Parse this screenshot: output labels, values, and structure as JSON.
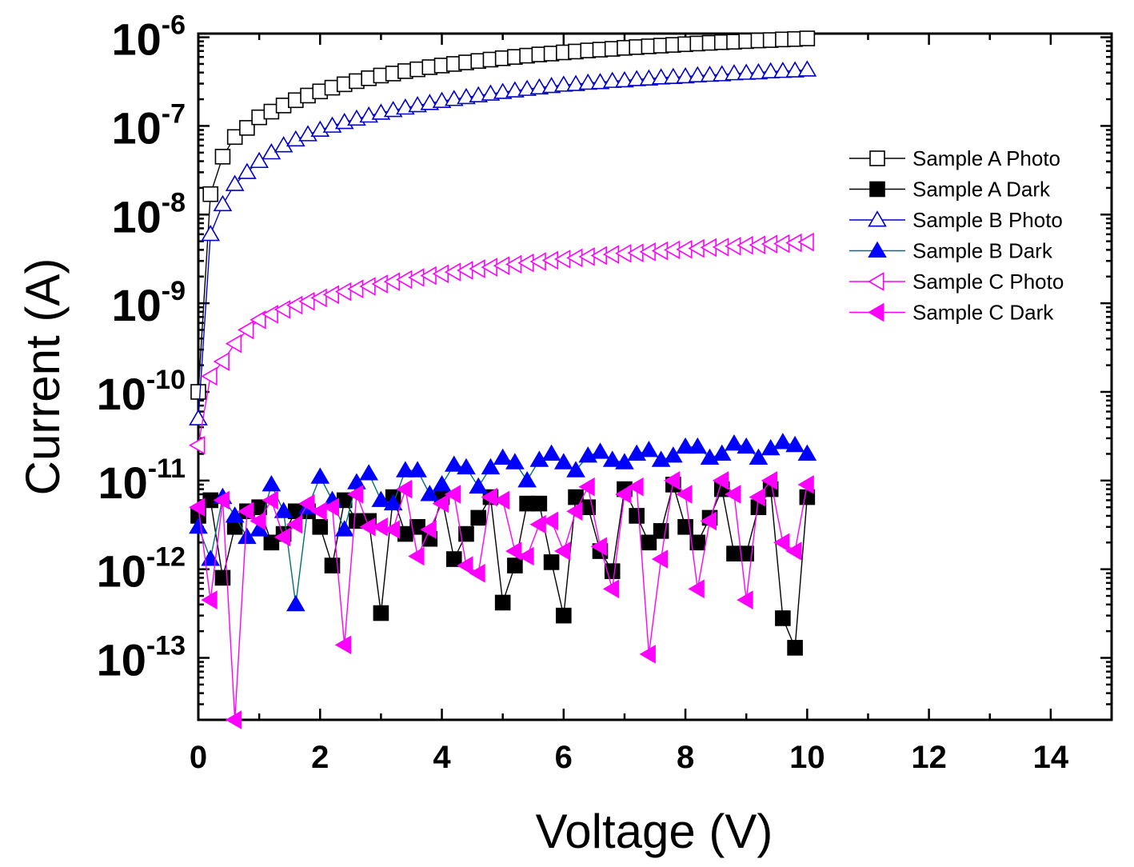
{
  "chart_data": {
    "type": "scatter",
    "title": "",
    "xlabel": "Voltage (V)",
    "ylabel": "Current (A)",
    "xlim": [
      0,
      15
    ],
    "ylim": [
      2e-14,
      1.1e-06
    ],
    "yscale": "log",
    "grid": false,
    "legend_position": "top-right",
    "x_ticks": [
      {
        "value": 0,
        "label": "0"
      },
      {
        "value": 2,
        "label": "2"
      },
      {
        "value": 4,
        "label": "4"
      },
      {
        "value": 6,
        "label": "6"
      },
      {
        "value": 8,
        "label": "8"
      },
      {
        "value": 10,
        "label": "10"
      },
      {
        "value": 12,
        "label": "12"
      },
      {
        "value": 14,
        "label": "14"
      }
    ],
    "y_ticks": [
      {
        "exp": -13,
        "base": "10",
        "exponent": "-13"
      },
      {
        "exp": -12,
        "base": "10",
        "exponent": "-12"
      },
      {
        "exp": -11,
        "base": "10",
        "exponent": "-11"
      },
      {
        "exp": -10,
        "base": "10",
        "exponent": "-10"
      },
      {
        "exp": -9,
        "base": "10",
        "exponent": "-9"
      },
      {
        "exp": -8,
        "base": "10",
        "exponent": "-8"
      },
      {
        "exp": -7,
        "base": "10",
        "exponent": "-7"
      },
      {
        "exp": -6,
        "base": "10",
        "exponent": "-6"
      }
    ],
    "series": [
      {
        "name": "Sample A Photo",
        "color": "#000000",
        "marker": "square",
        "filled": false,
        "x": [
          0,
          0.2,
          0.4,
          0.6,
          0.8,
          1.0,
          1.2,
          1.4,
          1.6,
          1.8,
          2.0,
          2.2,
          2.4,
          2.6,
          2.8,
          3.0,
          3.2,
          3.4,
          3.6,
          3.8,
          4.0,
          4.2,
          4.4,
          4.6,
          4.8,
          5.0,
          5.2,
          5.4,
          5.6,
          5.8,
          6.0,
          6.2,
          6.4,
          6.6,
          6.8,
          7.0,
          7.2,
          7.4,
          7.6,
          7.8,
          8.0,
          8.2,
          8.4,
          8.6,
          8.8,
          9.0,
          9.2,
          9.4,
          9.6,
          9.8,
          10.0
        ],
        "y": [
          1e-10,
          1.7e-08,
          4.5e-08,
          7.5e-08,
          9.5e-08,
          1.25e-07,
          1.45e-07,
          1.7e-07,
          1.95e-07,
          2.2e-07,
          2.45e-07,
          2.7e-07,
          2.95e-07,
          3.2e-07,
          3.45e-07,
          3.7e-07,
          3.9e-07,
          4.15e-07,
          4.35e-07,
          4.6e-07,
          4.8e-07,
          5e-07,
          5.2e-07,
          5.4e-07,
          5.6e-07,
          5.8e-07,
          6e-07,
          6.2e-07,
          6.4e-07,
          6.55e-07,
          6.75e-07,
          6.9e-07,
          7.1e-07,
          7.25e-07,
          7.4e-07,
          7.6e-07,
          7.75e-07,
          7.9e-07,
          8.05e-07,
          8.2e-07,
          8.35e-07,
          8.5e-07,
          8.65e-07,
          8.8e-07,
          8.9e-07,
          9.05e-07,
          9.2e-07,
          9.3e-07,
          9.45e-07,
          9.55e-07,
          9.7e-07
        ]
      },
      {
        "name": "Sample A Dark",
        "color": "#000000",
        "marker": "square",
        "filled": true,
        "x": [
          0,
          0.2,
          0.4,
          0.6,
          0.8,
          1.0,
          1.2,
          1.4,
          1.6,
          1.8,
          2.0,
          2.2,
          2.4,
          2.6,
          2.8,
          3.0,
          3.2,
          3.4,
          3.6,
          3.8,
          4.0,
          4.2,
          4.4,
          4.6,
          4.8,
          5.0,
          5.2,
          5.4,
          5.6,
          5.8,
          6.0,
          6.2,
          6.4,
          6.6,
          6.8,
          7.0,
          7.2,
          7.4,
          7.6,
          7.8,
          8.0,
          8.2,
          8.4,
          8.6,
          8.8,
          9.0,
          9.2,
          9.4,
          9.6,
          9.8,
          10.0
        ],
        "y": [
          4e-12,
          6e-12,
          8e-13,
          3e-12,
          4.5e-12,
          5e-12,
          2e-12,
          2.5e-12,
          4.5e-12,
          4.5e-12,
          3e-12,
          1.1e-12,
          6e-12,
          3.5e-12,
          3.5e-12,
          3.2e-13,
          6.5e-12,
          2.5e-12,
          3e-12,
          2.2e-12,
          6.5e-12,
          1.3e-12,
          2.5e-12,
          3.8e-12,
          6.5e-12,
          4.2e-13,
          1.1e-12,
          5.5e-12,
          5.5e-12,
          1.2e-12,
          3e-13,
          6.5e-12,
          5e-12,
          1.6e-12,
          9.5e-13,
          8e-12,
          4e-12,
          2e-12,
          2.7e-12,
          9e-12,
          3e-12,
          2e-12,
          3.8e-12,
          8e-12,
          1.5e-12,
          1.5e-12,
          5e-12,
          8e-12,
          2.8e-13,
          1.3e-13,
          6.5e-12
        ]
      },
      {
        "name": "Sample B Photo",
        "color": "#0000cc",
        "marker": "triangle-up",
        "filled": false,
        "x": [
          0,
          0.2,
          0.4,
          0.6,
          0.8,
          1.0,
          1.2,
          1.4,
          1.6,
          1.8,
          2.0,
          2.2,
          2.4,
          2.6,
          2.8,
          3.0,
          3.2,
          3.4,
          3.6,
          3.8,
          4.0,
          4.2,
          4.4,
          4.6,
          4.8,
          5.0,
          5.2,
          5.4,
          5.6,
          5.8,
          6.0,
          6.2,
          6.4,
          6.6,
          6.8,
          7.0,
          7.2,
          7.4,
          7.6,
          7.8,
          8.0,
          8.2,
          8.4,
          8.6,
          8.8,
          9.0,
          9.2,
          9.4,
          9.6,
          9.8,
          10.0
        ],
        "y": [
          5e-11,
          6e-09,
          1.3e-08,
          2.2e-08,
          3e-08,
          4e-08,
          5e-08,
          6e-08,
          7e-08,
          8e-08,
          9e-08,
          1e-07,
          1.1e-07,
          1.2e-07,
          1.3e-07,
          1.4e-07,
          1.5e-07,
          1.6e-07,
          1.7e-07,
          1.8e-07,
          1.9e-07,
          2e-07,
          2.1e-07,
          2.2e-07,
          2.3e-07,
          2.4e-07,
          2.5e-07,
          2.6e-07,
          2.7e-07,
          2.8e-07,
          2.9e-07,
          2.95e-07,
          3.05e-07,
          3.1e-07,
          3.2e-07,
          3.25e-07,
          3.35e-07,
          3.4e-07,
          3.5e-07,
          3.55e-07,
          3.6e-07,
          3.7e-07,
          3.75e-07,
          3.8e-07,
          3.9e-07,
          3.95e-07,
          4e-07,
          4.1e-07,
          4.15e-07,
          4.2e-07,
          4.3e-07
        ]
      },
      {
        "name": "Sample B Dark",
        "color": "#0000ff",
        "line_color": "#007070",
        "marker": "triangle-up",
        "filled": true,
        "x": [
          0,
          0.2,
          0.4,
          0.6,
          0.8,
          1.0,
          1.2,
          1.4,
          1.6,
          1.8,
          2.0,
          2.2,
          2.4,
          2.6,
          2.8,
          3.0,
          3.2,
          3.4,
          3.6,
          3.8,
          4.0,
          4.2,
          4.4,
          4.6,
          4.8,
          5.0,
          5.2,
          5.4,
          5.6,
          5.8,
          6.0,
          6.2,
          6.4,
          6.6,
          6.8,
          7.0,
          7.2,
          7.4,
          7.6,
          7.8,
          8.0,
          8.2,
          8.4,
          8.6,
          8.8,
          9.0,
          9.2,
          9.4,
          9.6,
          9.8,
          10.0
        ],
        "y": [
          3e-12,
          1.3e-12,
          6.5e-12,
          4e-12,
          2.3e-12,
          2.8e-12,
          9e-12,
          4.5e-12,
          4e-13,
          5e-12,
          1.1e-11,
          6e-12,
          2.8e-12,
          9.5e-12,
          1.2e-11,
          6e-12,
          5.5e-12,
          1.3e-11,
          1.3e-11,
          7e-12,
          9e-12,
          1.5e-11,
          1.4e-11,
          8.5e-12,
          1.4e-11,
          1.8e-11,
          1.6e-11,
          1e-11,
          1.7e-11,
          2e-11,
          1.6e-11,
          1.3e-11,
          1.9e-11,
          2.1e-11,
          1.7e-11,
          1.6e-11,
          2e-11,
          2.2e-11,
          1.7e-11,
          1.9e-11,
          2.4e-11,
          2.4e-11,
          1.8e-11,
          2e-11,
          2.6e-11,
          2.4e-11,
          1.8e-11,
          2.3e-11,
          2.7e-11,
          2.5e-11,
          2e-11
        ]
      },
      {
        "name": "Sample C Photo",
        "color": "#ff00ff",
        "marker": "triangle-left",
        "filled": false,
        "x": [
          0,
          0.2,
          0.4,
          0.6,
          0.8,
          1.0,
          1.2,
          1.4,
          1.6,
          1.8,
          2.0,
          2.2,
          2.4,
          2.6,
          2.8,
          3.0,
          3.2,
          3.4,
          3.6,
          3.8,
          4.0,
          4.2,
          4.4,
          4.6,
          4.8,
          5.0,
          5.2,
          5.4,
          5.6,
          5.8,
          6.0,
          6.2,
          6.4,
          6.6,
          6.8,
          7.0,
          7.2,
          7.4,
          7.6,
          7.8,
          8.0,
          8.2,
          8.4,
          8.6,
          8.8,
          9.0,
          9.2,
          9.4,
          9.6,
          9.8,
          10.0
        ],
        "y": [
          2.5e-11,
          1.5e-10,
          2.2e-10,
          3.5e-10,
          5e-10,
          6.5e-10,
          7.5e-10,
          8.5e-10,
          9.5e-10,
          1.05e-09,
          1.15e-09,
          1.25e-09,
          1.35e-09,
          1.45e-09,
          1.55e-09,
          1.65e-09,
          1.75e-09,
          1.85e-09,
          1.95e-09,
          2.05e-09,
          2.15e-09,
          2.25e-09,
          2.35e-09,
          2.45e-09,
          2.55e-09,
          2.65e-09,
          2.75e-09,
          2.85e-09,
          2.95e-09,
          3.05e-09,
          3.15e-09,
          3.25e-09,
          3.35e-09,
          3.45e-09,
          3.55e-09,
          3.65e-09,
          3.7e-09,
          3.8e-09,
          3.9e-09,
          4e-09,
          4.05e-09,
          4.15e-09,
          4.25e-09,
          4.3e-09,
          4.4e-09,
          4.5e-09,
          4.55e-09,
          4.65e-09,
          4.7e-09,
          4.8e-09,
          4.9e-09
        ]
      },
      {
        "name": "Sample C Dark",
        "color": "#ff00ff",
        "marker": "triangle-left",
        "filled": true,
        "x": [
          0,
          0.2,
          0.4,
          0.6,
          0.8,
          1.0,
          1.2,
          1.4,
          1.6,
          1.8,
          2.0,
          2.2,
          2.4,
          2.6,
          2.8,
          3.0,
          3.2,
          3.4,
          3.6,
          3.8,
          4.0,
          4.2,
          4.4,
          4.6,
          4.8,
          5.0,
          5.2,
          5.4,
          5.6,
          5.8,
          6.0,
          6.2,
          6.4,
          6.6,
          6.8,
          7.0,
          7.2,
          7.4,
          7.6,
          7.8,
          8.0,
          8.2,
          8.4,
          8.6,
          8.8,
          9.0,
          9.2,
          9.4,
          9.6,
          9.8,
          10.0
        ],
        "y": [
          5e-12,
          4.5e-13,
          6e-12,
          2e-14,
          4.5e-12,
          3.5e-12,
          6e-12,
          2.3e-12,
          3.2e-12,
          5.5e-12,
          4.5e-12,
          5e-12,
          1.4e-13,
          7e-12,
          3e-12,
          3e-12,
          2.8e-12,
          8e-12,
          1.4e-12,
          2.8e-12,
          5.5e-12,
          7e-12,
          1.1e-12,
          9e-13,
          6.5e-12,
          6e-12,
          1.6e-12,
          1.4e-12,
          3.2e-12,
          3.5e-12,
          1.6e-12,
          4.5e-12,
          8.5e-12,
          1.8e-12,
          6e-13,
          7e-12,
          8.5e-12,
          1.1e-13,
          1.3e-12,
          1e-11,
          7e-12,
          6e-13,
          3.5e-12,
          1e-11,
          7e-12,
          4.5e-13,
          6.5e-12,
          1e-11,
          2e-12,
          1.6e-12,
          9e-12
        ]
      }
    ]
  }
}
